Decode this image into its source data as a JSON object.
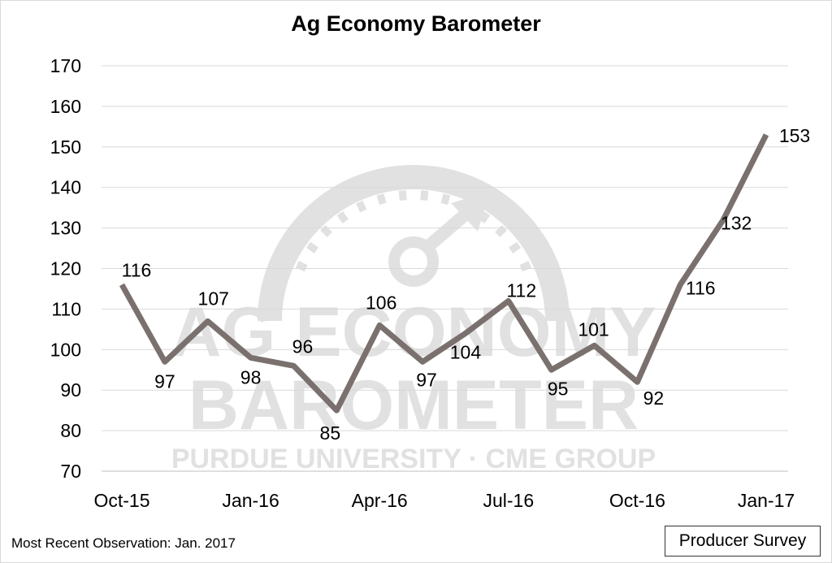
{
  "chart_data": {
    "type": "line",
    "title": "Ag Economy Barometer",
    "xlabel": "",
    "ylabel": "",
    "ylim": [
      70,
      170
    ],
    "y_ticks": [
      70,
      80,
      90,
      100,
      110,
      120,
      130,
      140,
      150,
      160,
      170
    ],
    "x": [
      "Oct-15",
      "Nov-15",
      "Dec-15",
      "Jan-16",
      "Feb-16",
      "Mar-16",
      "Apr-16",
      "May-16",
      "Jun-16",
      "Jul-16",
      "Aug-16",
      "Sep-16",
      "Oct-16",
      "Nov-16",
      "Dec-16",
      "Jan-17"
    ],
    "x_tick_labels": [
      "Oct-15",
      "Jan-16",
      "Apr-16",
      "Jul-16",
      "Oct-16",
      "Jan-17"
    ],
    "series": [
      {
        "values": [
          116,
          97,
          107,
          98,
          96,
          85,
          106,
          97,
          104,
          112,
          95,
          101,
          92,
          116,
          132,
          153
        ],
        "color": "#7a716e"
      }
    ],
    "data_labels": [
      "116",
      "97",
      "107",
      "98",
      "96",
      "85",
      "106",
      "97",
      "104",
      "112",
      "95",
      "101",
      "92",
      "116",
      "132",
      "153"
    ],
    "grid": "horizontal",
    "legend": "none"
  },
  "watermark": {
    "line1": "AG ECONOMY",
    "line2": "BAROMETER",
    "line3": "PURDUE UNIVERSITY · CME GROUP"
  },
  "footer": {
    "note": "Most Recent Observation: Jan. 2017",
    "source_label": "Producer Survey"
  }
}
